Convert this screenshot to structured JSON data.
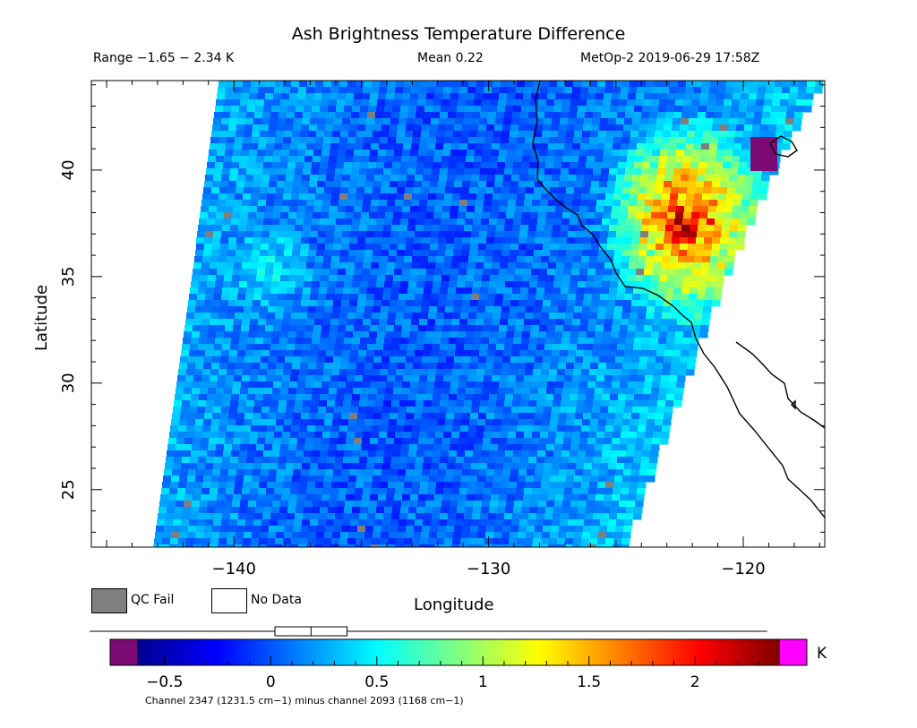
{
  "chart_data": {
    "type": "heatmap",
    "title": "Ash Brightness Temperature Difference",
    "range_text": "Range −1.65 − 2.34 K",
    "mean_text": "Mean 0.22",
    "satellite_text": "MetOp-2 2019-06-29 17:58Z",
    "xlabel": "Longitude",
    "ylabel": "Latitude",
    "x_ticks": [
      -140,
      -130,
      -120
    ],
    "x_tick_labels": [
      "−140",
      "−130",
      "−120"
    ],
    "y_ticks": [
      25,
      30,
      35,
      40
    ],
    "y_tick_labels": [
      "25",
      "30",
      "35",
      "40"
    ],
    "xlim": [
      -145.6,
      -116.8
    ],
    "ylim": [
      22.3,
      44.2
    ],
    "colorbar": {
      "range": [
        -0.63,
        2.4
      ],
      "ticks": [
        -0.5,
        0,
        0.5,
        1,
        1.5,
        2
      ],
      "tick_labels": [
        "−0.5",
        "0",
        "0.5",
        "1",
        "1.5",
        "2"
      ],
      "unit": "K",
      "under_color": "#7b0a73",
      "over_color": "#ff00ff"
    },
    "boxplot": {
      "min": -1.65,
      "q1": 0.02,
      "median": 0.19,
      "q3": 0.36,
      "max": 2.34
    },
    "legend": {
      "qc_fail": "QC Fail",
      "no_data": "No Data",
      "qc_color": "#7f7f7f"
    },
    "footnote": "Channel 2347 (1231.5 cm−1) minus channel 2093 (1168 cm−1)",
    "grid": false
  }
}
